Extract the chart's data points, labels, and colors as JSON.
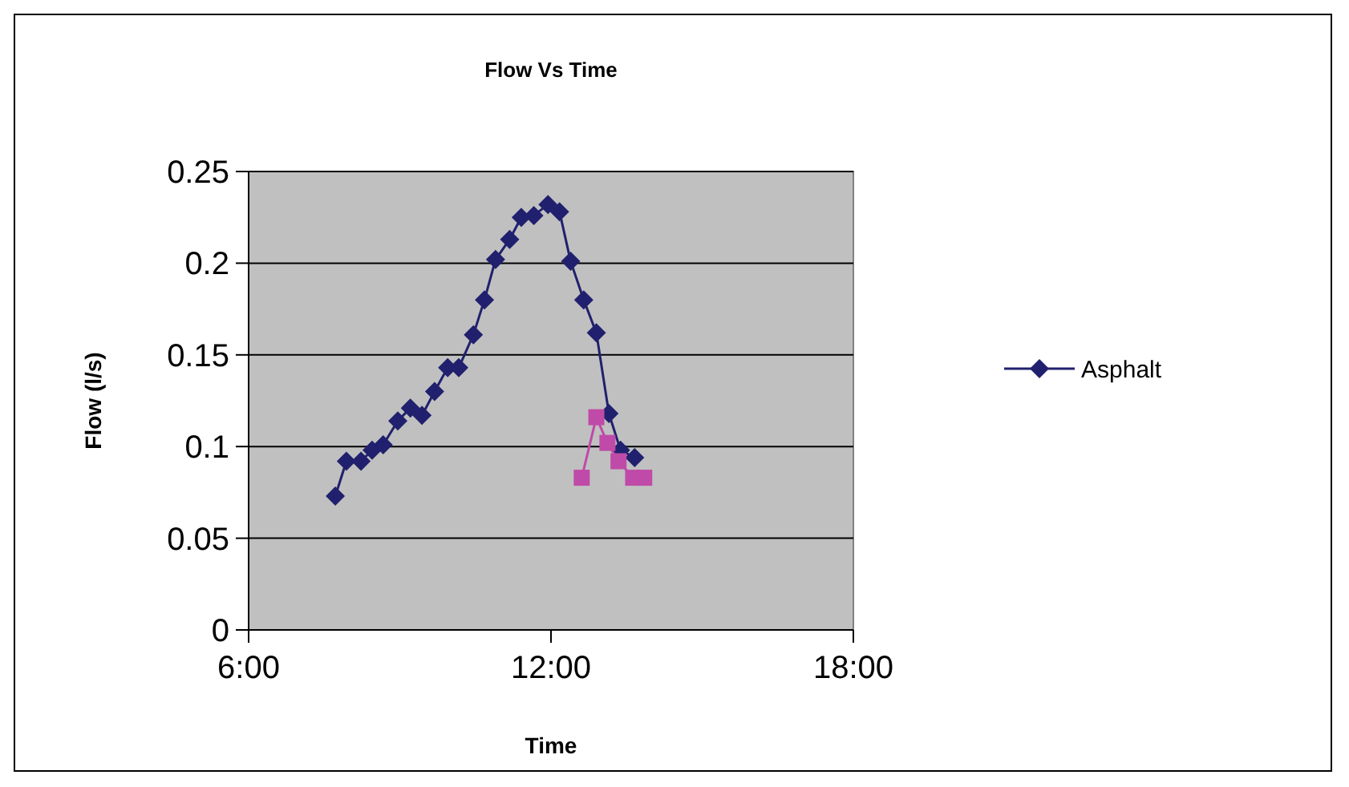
{
  "chart_data": {
    "type": "line",
    "title": "Flow Vs Time",
    "xlabel": "Time",
    "ylabel": "Flow (l/s)",
    "xlim": [
      6,
      18
    ],
    "xticks": [
      {
        "value": 6,
        "label": "6:00"
      },
      {
        "value": 12,
        "label": "12:00"
      },
      {
        "value": 18,
        "label": "18:00"
      }
    ],
    "ylim": [
      0,
      0.25
    ],
    "yticks": [
      0,
      0.05,
      0.1,
      0.15,
      0.2,
      0.25
    ],
    "grid": "y",
    "legend": "right",
    "series": [
      {
        "name": "Asphalt",
        "color": "#20206e",
        "marker": "diamond",
        "x": [
          7.72,
          7.94,
          8.23,
          8.45,
          8.67,
          8.96,
          9.21,
          9.44,
          9.69,
          9.95,
          10.17,
          10.46,
          10.68,
          10.9,
          11.18,
          11.41,
          11.66,
          11.94,
          12.17,
          12.39,
          12.65,
          12.9,
          13.15,
          13.38,
          13.66
        ],
        "values": [
          0.073,
          0.092,
          0.092,
          0.098,
          0.101,
          0.114,
          0.121,
          0.117,
          0.13,
          0.143,
          0.143,
          0.161,
          0.18,
          0.202,
          0.213,
          0.225,
          0.226,
          0.232,
          0.228,
          0.201,
          0.18,
          0.162,
          0.118,
          0.098,
          0.094
        ]
      },
      {
        "color": "#c04aa8",
        "marker": "square",
        "x": [
          12.61,
          12.9,
          13.12,
          13.34,
          13.63,
          13.85
        ],
        "values": [
          0.083,
          0.116,
          0.102,
          0.092,
          0.083,
          0.083
        ]
      }
    ]
  }
}
